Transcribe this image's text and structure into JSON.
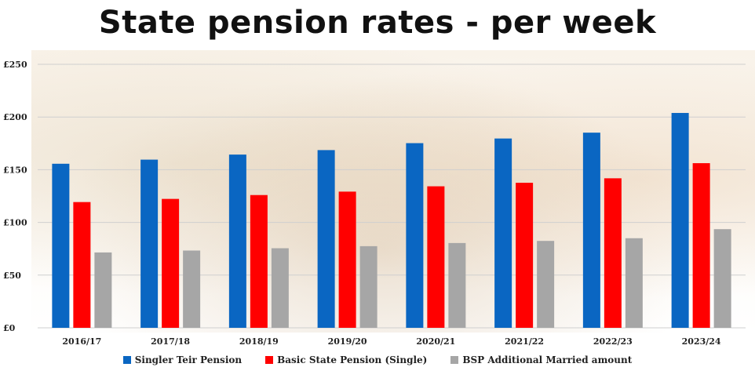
{
  "chart_data": {
    "type": "bar",
    "title": "State pension rates - per week",
    "categories": [
      "2016/17",
      "2017/18",
      "2018/19",
      "2019/20",
      "2020/21",
      "2021/22",
      "2022/23",
      "2023/24"
    ],
    "series": [
      {
        "name": "Singler Teir Pension",
        "color": "#0a66c2",
        "values": [
          155.65,
          159.55,
          164.35,
          168.6,
          175.2,
          179.6,
          185.15,
          203.85
        ]
      },
      {
        "name": "Basic State Pension (Single)",
        "color": "#ff0000",
        "values": [
          119.3,
          122.3,
          125.95,
          129.2,
          134.25,
          137.6,
          141.85,
          156.2
        ]
      },
      {
        "name": "BSP Additional Married amount",
        "color": "#a6a6a6",
        "values": [
          71.5,
          73.3,
          75.5,
          77.45,
          80.45,
          82.45,
          85.0,
          93.6
        ]
      }
    ],
    "yticks": [
      "£0",
      "£50",
      "£100",
      "£150",
      "£200",
      "£250"
    ],
    "ytick_values": [
      0,
      50,
      100,
      150,
      200,
      250
    ],
    "ylim": [
      0,
      250
    ],
    "grid": true,
    "legend": "bottom"
  }
}
